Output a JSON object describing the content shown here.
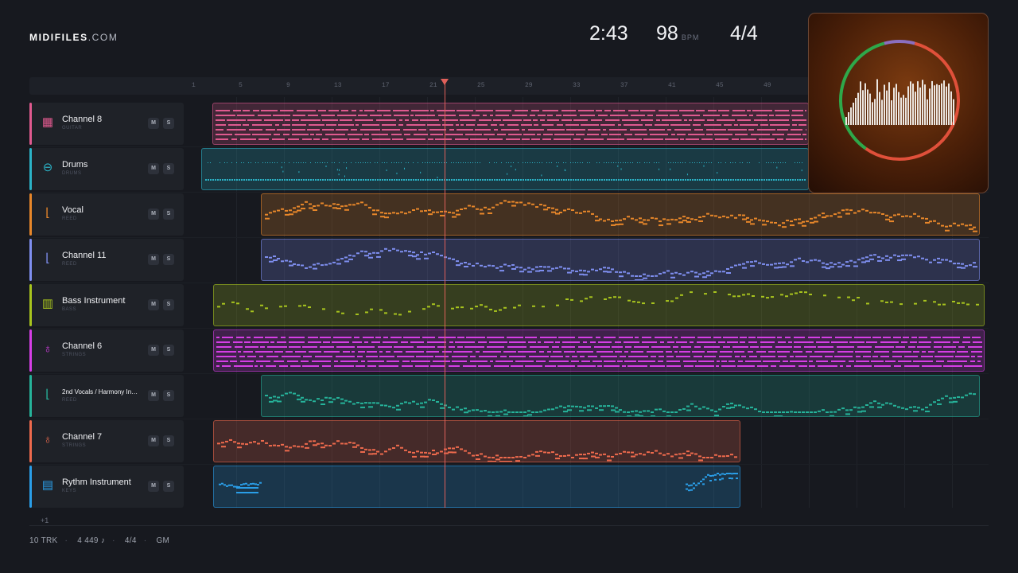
{
  "brand": {
    "name": "MIDIFILES",
    "suffix": ".COM"
  },
  "transport": {
    "time": "2:43",
    "bpm": "98",
    "bpm_unit": "BPM",
    "signature": "4/4"
  },
  "ruler": {
    "ticks": [
      "1",
      "5",
      "9",
      "13",
      "17",
      "21",
      "25",
      "29",
      "33",
      "37",
      "41",
      "45",
      "49"
    ]
  },
  "tracks": [
    {
      "name": "Channel 8",
      "type": "GUITAR",
      "icon": "guitar-grid-icon",
      "color": "#e05a8f",
      "mute_label": "M",
      "solo_label": "S"
    },
    {
      "name": "Drums",
      "type": "DRUMS",
      "icon": "drum-icon",
      "color": "#2bb3c7",
      "mute_label": "M",
      "solo_label": "S"
    },
    {
      "name": "Vocal",
      "type": "REED",
      "icon": "reed-icon",
      "color": "#e8872a",
      "mute_label": "M",
      "solo_label": "S"
    },
    {
      "name": "Channel 11",
      "type": "REED",
      "icon": "reed-icon",
      "color": "#7f8ff0",
      "mute_label": "M",
      "solo_label": "S"
    },
    {
      "name": "Bass Instrument",
      "type": "BASS",
      "icon": "bass-icon",
      "color": "#a8c41e",
      "mute_label": "M",
      "solo_label": "S"
    },
    {
      "name": "Channel 6",
      "type": "STRINGS",
      "icon": "violin-icon",
      "color": "#d63ee6",
      "mute_label": "M",
      "solo_label": "S"
    },
    {
      "name": "2nd Vocals / Harmony Ins...",
      "type": "REED",
      "icon": "reed-icon",
      "color": "#26b39a",
      "mute_label": "M",
      "solo_label": "S"
    },
    {
      "name": "Channel 7",
      "type": "STRINGS",
      "icon": "violin-icon",
      "color": "#ee6a4d",
      "mute_label": "M",
      "solo_label": "S"
    },
    {
      "name": "Rythm Instrument",
      "type": "KEYS",
      "icon": "keys-icon",
      "color": "#2a9ee8",
      "mute_label": "M",
      "solo_label": "S"
    }
  ],
  "more_tracks": "+1",
  "footer": {
    "tracks": "10 TRK",
    "notes": "4 449 ♪",
    "signature": "4/4",
    "standard": "GM"
  },
  "album_art": {
    "ring_colors": [
      "#8a6fc0",
      "#e0503a",
      "#2ea84a"
    ],
    "bars_color": "#ece6e0"
  }
}
